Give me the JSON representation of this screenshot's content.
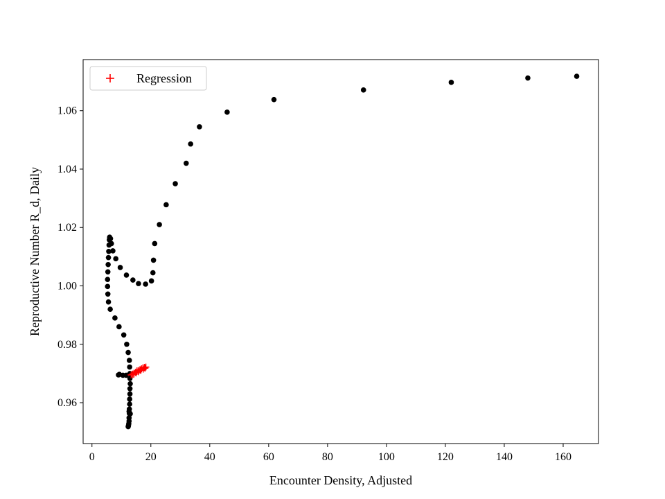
{
  "chart_data": {
    "type": "scatter",
    "title": "",
    "xlabel": "Encounter Density, Adjusted",
    "ylabel": "Reproductive Number R_d, Daily",
    "xlim": [
      -3,
      172
    ],
    "ylim": [
      0.946,
      1.0775
    ],
    "xticks": [
      0,
      20,
      40,
      60,
      80,
      100,
      120,
      140,
      160
    ],
    "xtick_labels": [
      "0",
      "20",
      "40",
      "60",
      "80",
      "100",
      "120",
      "140",
      "160"
    ],
    "yticks": [
      0.96,
      0.98,
      1.0,
      1.02,
      1.04,
      1.06
    ],
    "ytick_labels": [
      "0.96",
      "0.98",
      "1.00",
      "1.02",
      "1.04",
      "1.06"
    ],
    "grid": false,
    "legend": {
      "position": "top-left",
      "entries": [
        "Regression"
      ]
    },
    "series": [
      {
        "name": "",
        "marker": "circle",
        "color": "#000000",
        "x": [
          164.6,
          148.0,
          122.0,
          92.2,
          61.8,
          45.9,
          36.5,
          33.5,
          32.0,
          28.3,
          25.2,
          22.9,
          21.3,
          20.9,
          20.7,
          20.2,
          18.2,
          15.8,
          13.9,
          11.7,
          9.6,
          8.1,
          7.1,
          6.6,
          6.3,
          6.0,
          5.9,
          5.8,
          5.7,
          5.6,
          5.5,
          5.4,
          5.3,
          5.3,
          5.4,
          5.6,
          6.2,
          7.8,
          9.2,
          10.8,
          11.8,
          12.3,
          12.7,
          12.8,
          12.9,
          12.9,
          13.0,
          12.9,
          12.9,
          12.8,
          12.8,
          12.7,
          12.7,
          12.6,
          12.6,
          12.5,
          12.4,
          12.3,
          12.6,
          13.0,
          11.6,
          10.5,
          9.3,
          9.0
        ],
        "y": [
          1.0718,
          1.0712,
          1.0697,
          1.0671,
          1.0638,
          1.0595,
          1.0545,
          1.0486,
          1.042,
          1.035,
          1.0278,
          1.021,
          1.0145,
          1.0088,
          1.0045,
          1.0017,
          1.0006,
          1.0008,
          1.002,
          1.0037,
          1.0063,
          1.0093,
          1.012,
          1.0145,
          1.0162,
          1.0167,
          1.0158,
          1.014,
          1.0118,
          1.0097,
          1.0073,
          1.0048,
          1.0022,
          0.9998,
          0.9972,
          0.9945,
          0.992,
          0.989,
          0.986,
          0.9832,
          0.98,
          0.9772,
          0.9745,
          0.9722,
          0.97,
          0.9683,
          0.9665,
          0.9648,
          0.963,
          0.9612,
          0.9595,
          0.9578,
          0.9563,
          0.9548,
          0.9537,
          0.9528,
          0.9522,
          0.9518,
          0.957,
          0.9562,
          0.9694,
          0.9694,
          0.9697,
          0.9695
        ]
      },
      {
        "name": "Regression",
        "marker": "plus",
        "color": "#ff0000",
        "x": [
          13.3,
          13.8,
          14.3,
          14.8,
          15.3,
          15.8,
          16.3,
          16.8,
          17.3,
          17.8,
          18.3,
          14.2,
          15.0,
          15.8,
          16.6,
          17.4,
          18.0,
          15.3,
          16.4
        ],
        "y": [
          0.9695,
          0.9698,
          0.9701,
          0.9704,
          0.9707,
          0.971,
          0.9713,
          0.9716,
          0.9719,
          0.9721,
          0.9722,
          0.9697,
          0.9702,
          0.9706,
          0.9711,
          0.9715,
          0.9718,
          0.9709,
          0.9712
        ]
      }
    ]
  }
}
